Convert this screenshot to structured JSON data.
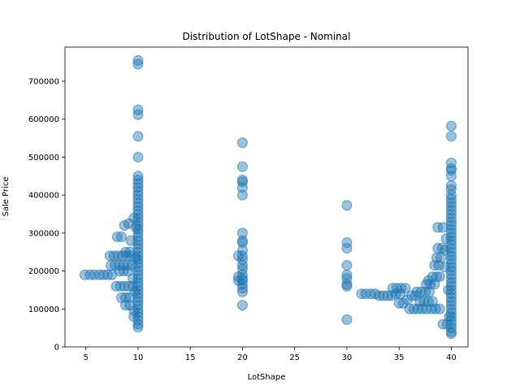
{
  "chart_data": {
    "type": "scatter",
    "title": "Distribution of LotShape - Nominal",
    "xlabel": "LotShape",
    "ylabel": "Sale Price",
    "xlim": [
      3,
      41.6
    ],
    "ylim": [
      0,
      790000
    ],
    "xticks": [
      5,
      10,
      15,
      20,
      25,
      30,
      35,
      40
    ],
    "yticks": [
      0,
      100000,
      200000,
      300000,
      400000,
      500000,
      600000,
      700000
    ],
    "grid": false,
    "legend": false,
    "marker_color": "#1f77b4",
    "marker_alpha": 0.45,
    "points": [
      [
        4.9,
        190000
      ],
      [
        5.4,
        190000
      ],
      [
        5.8,
        190000
      ],
      [
        6.3,
        190000
      ],
      [
        6.7,
        190000
      ],
      [
        7.1,
        190000
      ],
      [
        7.5,
        190000
      ],
      [
        7.3,
        240000
      ],
      [
        7.7,
        240000
      ],
      [
        8.1,
        240000
      ],
      [
        8.5,
        240000
      ],
      [
        8.9,
        240000
      ],
      [
        9.3,
        240000
      ],
      [
        7.4,
        215000
      ],
      [
        7.8,
        215000
      ],
      [
        8.2,
        215000
      ],
      [
        8.6,
        215000
      ],
      [
        9.0,
        215000
      ],
      [
        9.4,
        215000
      ],
      [
        7.9,
        160000
      ],
      [
        8.3,
        160000
      ],
      [
        8.7,
        160000
      ],
      [
        9.1,
        160000
      ],
      [
        9.5,
        160000
      ],
      [
        8.0,
        290000
      ],
      [
        8.4,
        290000
      ],
      [
        8.8,
        250000
      ],
      [
        9.2,
        250000
      ],
      [
        8.2,
        200000
      ],
      [
        8.6,
        200000
      ],
      [
        9.0,
        200000
      ],
      [
        8.4,
        130000
      ],
      [
        8.8,
        130000
      ],
      [
        9.2,
        130000
      ],
      [
        8.8,
        110000
      ],
      [
        9.2,
        110000
      ],
      [
        9.6,
        95000
      ],
      [
        8.7,
        320000
      ],
      [
        9.1,
        325000
      ],
      [
        9.3,
        280000
      ],
      [
        9.5,
        180000
      ],
      [
        9.7,
        145000
      ],
      [
        10,
        52000
      ],
      [
        10,
        60000
      ],
      [
        10,
        70000
      ],
      [
        10,
        80000
      ],
      [
        10,
        90000
      ],
      [
        10,
        100000
      ],
      [
        10,
        110000
      ],
      [
        10,
        120000
      ],
      [
        10,
        130000
      ],
      [
        10,
        140000
      ],
      [
        10,
        150000
      ],
      [
        10,
        160000
      ],
      [
        10,
        170000
      ],
      [
        10,
        180000
      ],
      [
        10,
        190000
      ],
      [
        10,
        200000
      ],
      [
        10,
        210000
      ],
      [
        10,
        220000
      ],
      [
        10,
        230000
      ],
      [
        10,
        240000
      ],
      [
        10,
        250000
      ],
      [
        10,
        260000
      ],
      [
        10,
        270000
      ],
      [
        10,
        280000
      ],
      [
        10,
        290000
      ],
      [
        10,
        300000
      ],
      [
        10,
        310000
      ],
      [
        10,
        320000
      ],
      [
        10,
        330000
      ],
      [
        10,
        340000
      ],
      [
        10,
        350000
      ],
      [
        10,
        360000
      ],
      [
        10,
        370000
      ],
      [
        10,
        380000
      ],
      [
        10,
        390000
      ],
      [
        10,
        400000
      ],
      [
        10,
        410000
      ],
      [
        10,
        420000
      ],
      [
        10,
        430000
      ],
      [
        10,
        440000
      ],
      [
        10,
        450000
      ],
      [
        10,
        500000
      ],
      [
        10,
        555000
      ],
      [
        10,
        612000
      ],
      [
        10,
        625000
      ],
      [
        10,
        745000
      ],
      [
        10,
        755000
      ],
      [
        9.6,
        80000
      ],
      [
        9.8,
        235000
      ],
      [
        9.8,
        315000
      ],
      [
        9.6,
        340000
      ],
      [
        19.6,
        240000
      ],
      [
        19.6,
        185000
      ],
      [
        19.6,
        175000
      ],
      [
        20,
        110000
      ],
      [
        20,
        145000
      ],
      [
        20,
        155000
      ],
      [
        20,
        165000
      ],
      [
        20,
        175000
      ],
      [
        20,
        180000
      ],
      [
        20,
        190000
      ],
      [
        20,
        205000
      ],
      [
        20,
        215000
      ],
      [
        20,
        230000
      ],
      [
        20,
        240000
      ],
      [
        20,
        255000
      ],
      [
        20,
        275000
      ],
      [
        20,
        280000
      ],
      [
        20,
        300000
      ],
      [
        20,
        400000
      ],
      [
        20,
        420000
      ],
      [
        20,
        435000
      ],
      [
        20,
        440000
      ],
      [
        20,
        475000
      ],
      [
        20,
        538000
      ],
      [
        30,
        72000
      ],
      [
        30,
        160000
      ],
      [
        30,
        165000
      ],
      [
        30,
        180000
      ],
      [
        30,
        190000
      ],
      [
        30,
        215000
      ],
      [
        30,
        260000
      ],
      [
        30,
        275000
      ],
      [
        30,
        373000
      ],
      [
        31.4,
        140000
      ],
      [
        31.8,
        140000
      ],
      [
        32.3,
        140000
      ],
      [
        32.7,
        140000
      ],
      [
        33.1,
        135000
      ],
      [
        33.5,
        135000
      ],
      [
        33.9,
        135000
      ],
      [
        34.3,
        135000
      ],
      [
        34.7,
        140000
      ],
      [
        35.1,
        140000
      ],
      [
        34.4,
        155000
      ],
      [
        34.8,
        155000
      ],
      [
        35.2,
        155000
      ],
      [
        35.6,
        155000
      ],
      [
        35.0,
        115000
      ],
      [
        35.4,
        115000
      ],
      [
        35.8,
        125000
      ],
      [
        36.0,
        100000
      ],
      [
        36.2,
        135000
      ],
      [
        36.6,
        135000
      ],
      [
        36.4,
        100000
      ],
      [
        36.8,
        100000
      ],
      [
        37.2,
        100000
      ],
      [
        37.6,
        100000
      ],
      [
        36.7,
        145000
      ],
      [
        37.1,
        145000
      ],
      [
        37.5,
        145000
      ],
      [
        37.9,
        145000
      ],
      [
        37.0,
        120000
      ],
      [
        37.4,
        120000
      ],
      [
        37.8,
        120000
      ],
      [
        38.2,
        120000
      ],
      [
        37.6,
        165000
      ],
      [
        38.0,
        165000
      ],
      [
        38.4,
        165000
      ],
      [
        37.8,
        175000
      ],
      [
        38.2,
        185000
      ],
      [
        38.6,
        185000
      ],
      [
        38.9,
        185000
      ],
      [
        38.1,
        100000
      ],
      [
        38.5,
        100000
      ],
      [
        38.9,
        100000
      ],
      [
        38.4,
        215000
      ],
      [
        38.8,
        215000
      ],
      [
        38.6,
        235000
      ],
      [
        39.0,
        235000
      ],
      [
        38.7,
        260000
      ],
      [
        39.1,
        260000
      ],
      [
        38.7,
        315000
      ],
      [
        39.2,
        315000
      ],
      [
        39.4,
        255000
      ],
      [
        39.5,
        285000
      ],
      [
        39.2,
        60000
      ],
      [
        39.6,
        60000
      ],
      [
        39.4,
        210000
      ],
      [
        39.7,
        150000
      ],
      [
        39.8,
        80000
      ],
      [
        40,
        35000
      ],
      [
        40,
        40000
      ],
      [
        40,
        50000
      ],
      [
        40,
        60000
      ],
      [
        40,
        70000
      ],
      [
        40,
        80000
      ],
      [
        40,
        90000
      ],
      [
        40,
        100000
      ],
      [
        40,
        110000
      ],
      [
        40,
        120000
      ],
      [
        40,
        130000
      ],
      [
        40,
        140000
      ],
      [
        40,
        150000
      ],
      [
        40,
        160000
      ],
      [
        40,
        170000
      ],
      [
        40,
        180000
      ],
      [
        40,
        190000
      ],
      [
        40,
        200000
      ],
      [
        40,
        210000
      ],
      [
        40,
        220000
      ],
      [
        40,
        230000
      ],
      [
        40,
        240000
      ],
      [
        40,
        250000
      ],
      [
        40,
        260000
      ],
      [
        40,
        270000
      ],
      [
        40,
        280000
      ],
      [
        40,
        290000
      ],
      [
        40,
        300000
      ],
      [
        40,
        310000
      ],
      [
        40,
        320000
      ],
      [
        40,
        330000
      ],
      [
        40,
        340000
      ],
      [
        40,
        350000
      ],
      [
        40,
        360000
      ],
      [
        40,
        370000
      ],
      [
        40,
        380000
      ],
      [
        40,
        390000
      ],
      [
        40,
        400000
      ],
      [
        40,
        415000
      ],
      [
        40,
        425000
      ],
      [
        40,
        450000
      ],
      [
        40,
        465000
      ],
      [
        40,
        470000
      ],
      [
        40,
        485000
      ],
      [
        40,
        555000
      ],
      [
        40,
        582000
      ]
    ]
  }
}
